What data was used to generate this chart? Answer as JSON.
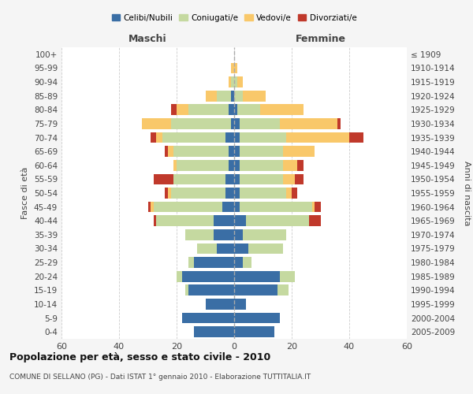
{
  "age_groups": [
    "0-4",
    "5-9",
    "10-14",
    "15-19",
    "20-24",
    "25-29",
    "30-34",
    "35-39",
    "40-44",
    "45-49",
    "50-54",
    "55-59",
    "60-64",
    "65-69",
    "70-74",
    "75-79",
    "80-84",
    "85-89",
    "90-94",
    "95-99",
    "100+"
  ],
  "birth_years": [
    "2005-2009",
    "2000-2004",
    "1995-1999",
    "1990-1994",
    "1985-1989",
    "1980-1984",
    "1975-1979",
    "1970-1974",
    "1965-1969",
    "1960-1964",
    "1955-1959",
    "1950-1954",
    "1945-1949",
    "1940-1944",
    "1935-1939",
    "1930-1934",
    "1925-1929",
    "1920-1924",
    "1915-1919",
    "1910-1914",
    "≤ 1909"
  ],
  "maschi": {
    "celibe": [
      14,
      18,
      10,
      16,
      18,
      14,
      6,
      7,
      7,
      4,
      3,
      3,
      2,
      2,
      3,
      1,
      2,
      1,
      0,
      0,
      0
    ],
    "coniugato": [
      0,
      0,
      0,
      1,
      2,
      2,
      7,
      10,
      20,
      24,
      19,
      18,
      18,
      19,
      22,
      21,
      14,
      5,
      1,
      0,
      0
    ],
    "vedovo": [
      0,
      0,
      0,
      0,
      0,
      0,
      0,
      0,
      0,
      1,
      1,
      0,
      1,
      2,
      2,
      10,
      4,
      4,
      1,
      1,
      0
    ],
    "divorziato": [
      0,
      0,
      0,
      0,
      0,
      0,
      0,
      0,
      1,
      1,
      1,
      7,
      0,
      1,
      2,
      0,
      2,
      0,
      0,
      0,
      0
    ]
  },
  "femmine": {
    "nubile": [
      14,
      16,
      4,
      15,
      16,
      3,
      5,
      3,
      4,
      2,
      2,
      2,
      2,
      2,
      2,
      2,
      1,
      0,
      0,
      0,
      0
    ],
    "coniugata": [
      0,
      0,
      0,
      4,
      5,
      3,
      12,
      15,
      22,
      25,
      16,
      15,
      15,
      15,
      16,
      14,
      8,
      3,
      1,
      0,
      0
    ],
    "vedova": [
      0,
      0,
      0,
      0,
      0,
      0,
      0,
      0,
      0,
      1,
      2,
      4,
      5,
      11,
      22,
      20,
      15,
      8,
      2,
      1,
      0
    ],
    "divorziata": [
      0,
      0,
      0,
      0,
      0,
      0,
      0,
      0,
      4,
      2,
      2,
      3,
      2,
      0,
      5,
      1,
      0,
      0,
      0,
      0,
      0
    ]
  },
  "colors": {
    "celibe": "#3a6ea5",
    "coniugato": "#c5d9a0",
    "vedovo": "#f9c86a",
    "divorziato": "#c0392b"
  },
  "xlim": 60,
  "title": "Popolazione per età, sesso e stato civile - 2010",
  "subtitle": "COMUNE DI SELLANO (PG) - Dati ISTAT 1° gennaio 2010 - Elaborazione TUTTITALIA.IT",
  "ylabel_left": "Fasce di età",
  "ylabel_right": "Anni di nascita",
  "xlabel_left": "Maschi",
  "xlabel_right": "Femmine",
  "background_color": "#f5f5f5",
  "plot_bg": "#ffffff"
}
